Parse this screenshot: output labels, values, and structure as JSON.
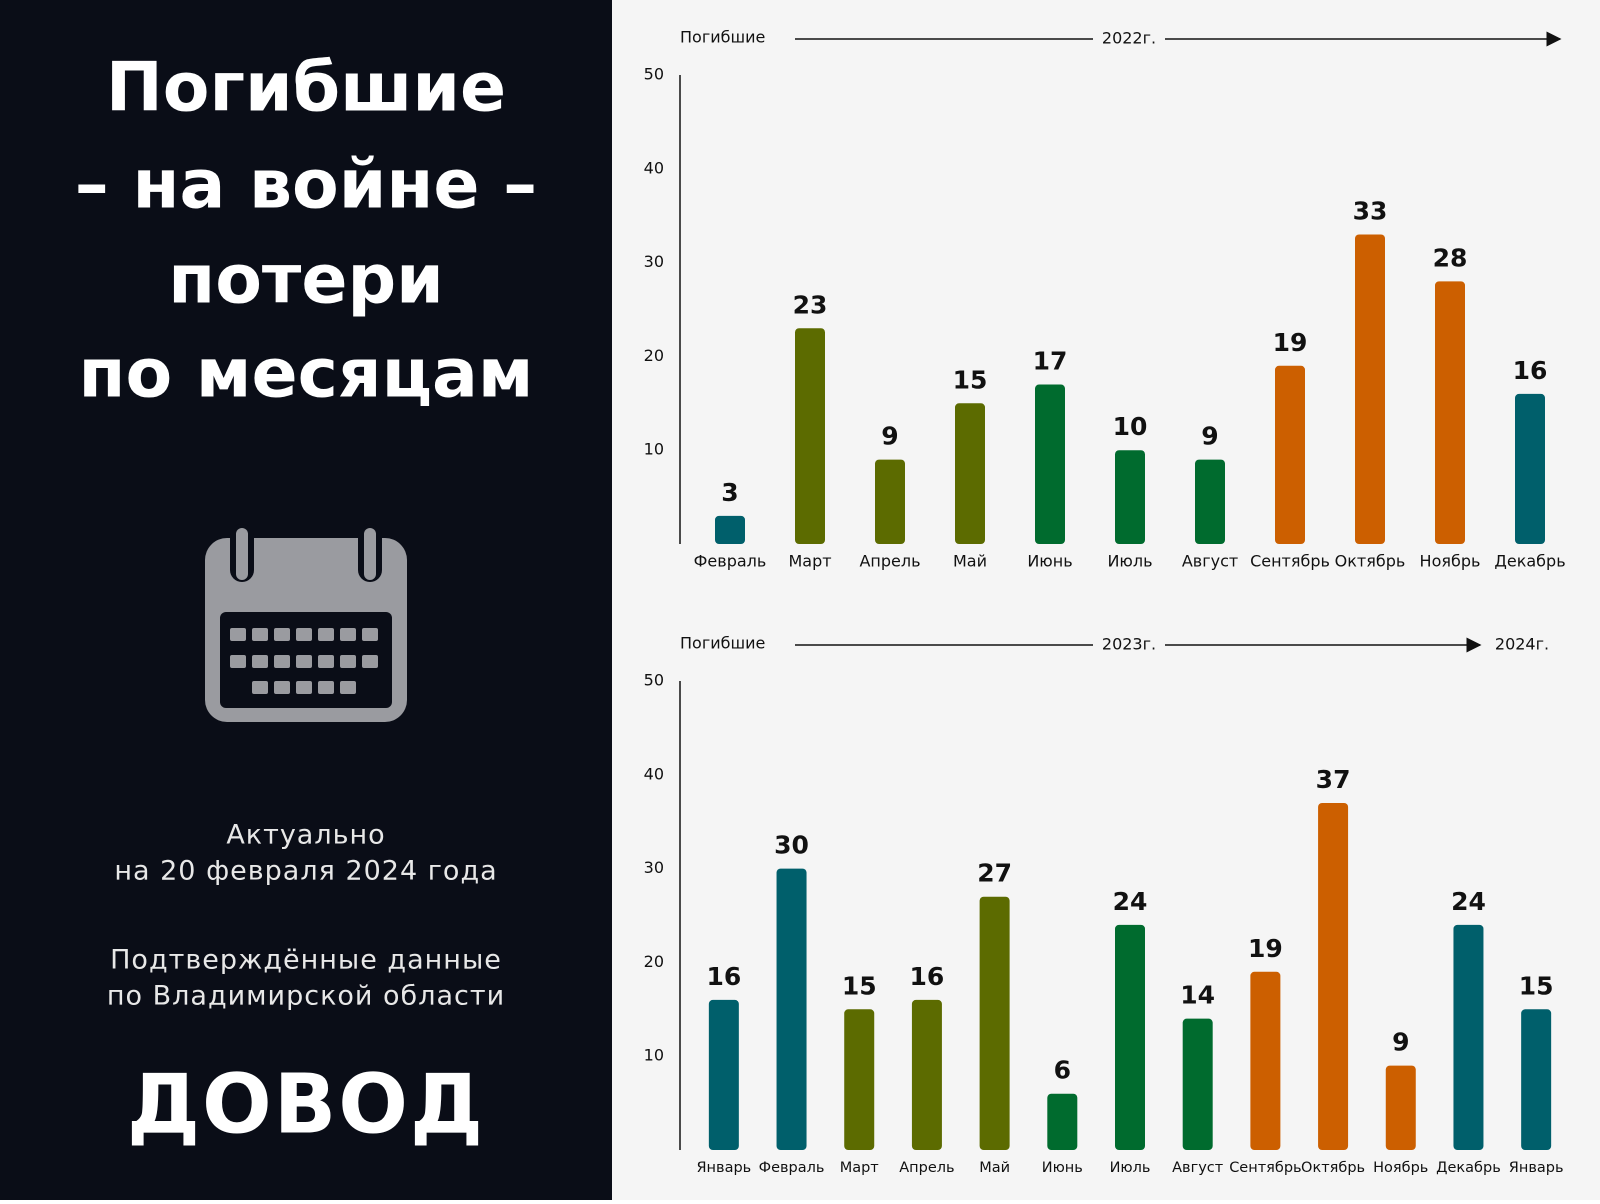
{
  "panel": {
    "title_lines": [
      "Погибшие",
      "– на войне –",
      "потери",
      "по месяцам"
    ],
    "date_note": [
      "Актуально",
      "на 20 февраля 2024 года"
    ],
    "source_note": [
      "Подтверждённые данные",
      "по Владимирской области"
    ],
    "logo": "ДОВОД"
  },
  "chart_data": [
    {
      "type": "bar",
      "ylabel": "Погибшие",
      "annotations": [
        "2022г."
      ],
      "categories": [
        "Февраль",
        "Март",
        "Апрель",
        "Май",
        "Июнь",
        "Июль",
        "Август",
        "Сентябрь",
        "Октябрь",
        "Ноябрь",
        "Декабрь"
      ],
      "values": [
        3,
        23,
        9,
        15,
        17,
        10,
        9,
        19,
        33,
        28,
        16
      ],
      "colors": [
        "#005f6b",
        "#5c6b00",
        "#5c6b00",
        "#5c6b00",
        "#006b2e",
        "#006b2e",
        "#006b2e",
        "#cc5f00",
        "#cc5f00",
        "#cc5f00",
        "#005f6b"
      ],
      "ylim": [
        0,
        50
      ],
      "yticks": [
        10,
        20,
        30,
        40,
        50
      ]
    },
    {
      "type": "bar",
      "ylabel": "Погибшие",
      "annotations": [
        "2023г.",
        "2024г."
      ],
      "categories": [
        "Январь",
        "Февраль",
        "Март",
        "Апрель",
        "Май",
        "Июнь",
        "Июль",
        "Август",
        "Сентябрь",
        "Октябрь",
        "Ноябрь",
        "Декабрь",
        "Январь"
      ],
      "values": [
        16,
        30,
        15,
        16,
        27,
        6,
        24,
        14,
        19,
        37,
        9,
        24,
        15
      ],
      "colors": [
        "#005f6b",
        "#005f6b",
        "#5c6b00",
        "#5c6b00",
        "#5c6b00",
        "#006b2e",
        "#006b2e",
        "#006b2e",
        "#cc5f00",
        "#cc5f00",
        "#cc5f00",
        "#005f6b",
        "#005f6b"
      ],
      "ylim": [
        0,
        50
      ],
      "yticks": [
        10,
        20,
        30,
        40,
        50
      ]
    }
  ]
}
